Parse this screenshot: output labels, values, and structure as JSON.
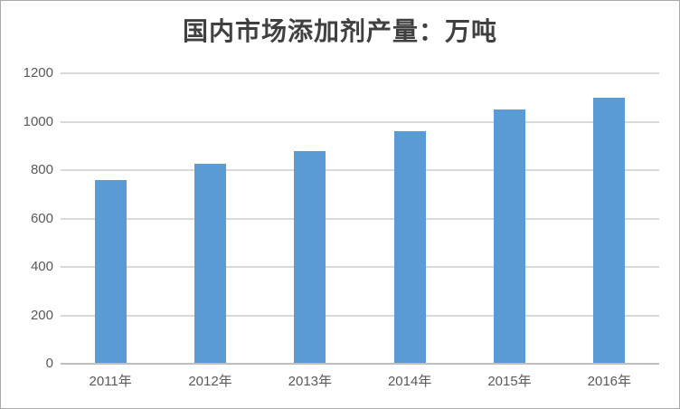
{
  "chart_data": {
    "type": "bar",
    "title": "国内市场添加剂产量：万吨",
    "categories": [
      "2011年",
      "2012年",
      "2013年",
      "2014年",
      "2015年",
      "2016年"
    ],
    "values": [
      760,
      825,
      880,
      960,
      1050,
      1100
    ],
    "xlabel": "",
    "ylabel": "",
    "ylim": [
      0,
      1200
    ],
    "y_ticks": [
      0,
      200,
      400,
      600,
      800,
      1000,
      1200
    ],
    "grid": true,
    "legend": false,
    "colors": {
      "bar": "#5B9BD5",
      "gridline": "#D9D9D9",
      "axis_line": "#BFBFBF",
      "tick_label": "#595959",
      "title": "#404040",
      "background": "#FFFFFF",
      "frame_border": "#AAAAAA"
    }
  }
}
